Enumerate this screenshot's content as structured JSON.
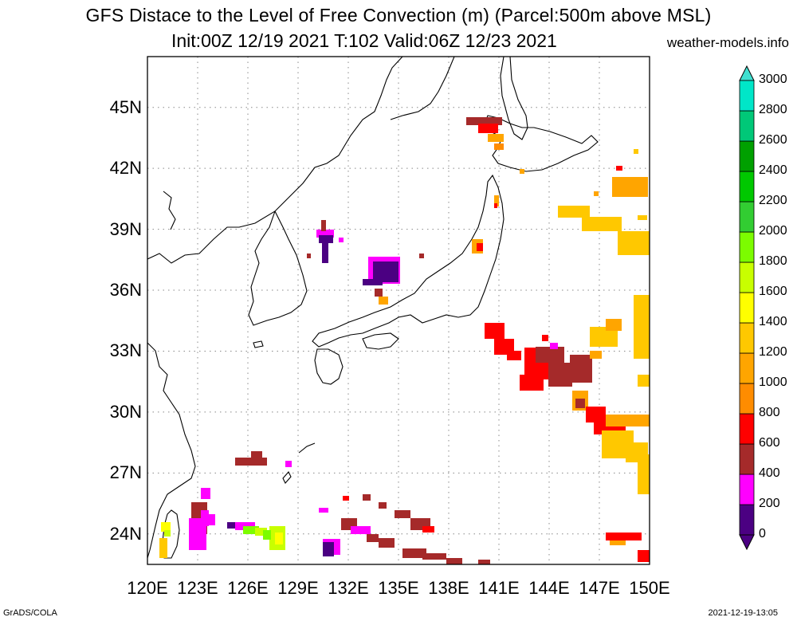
{
  "header": {
    "title_line1": "GFS Distace to the Level of Free Convection (m) (Parcel:500m above MSL)",
    "title_line2": "Init:00Z 12/19 2021 T:102 Valid:06Z 12/23 2021",
    "site": "weather-models.info"
  },
  "footer": {
    "left": "GrADS/COLA",
    "right": "2021-12-19-13:05"
  },
  "map": {
    "lon_range": [
      120,
      150
    ],
    "lat_range": [
      22.5,
      47.5
    ],
    "grid": true,
    "lat_ticks": [
      "24N",
      "27N",
      "30N",
      "33N",
      "36N",
      "39N",
      "42N",
      "45N"
    ],
    "lon_ticks": [
      "120E",
      "123E",
      "126E",
      "129E",
      "132E",
      "135E",
      "138E",
      "141E",
      "144E",
      "147E",
      "150E"
    ]
  },
  "colorbar": {
    "labels": [
      "0",
      "200",
      "400",
      "600",
      "800",
      "1000",
      "1200",
      "1400",
      "1600",
      "1800",
      "2000",
      "2200",
      "2400",
      "2600",
      "2800",
      "3000"
    ],
    "colors": [
      "#4b0082",
      "#ff00ff",
      "#a52a2a",
      "#ff0000",
      "#ff8c00",
      "#ffa500",
      "#ffc800",
      "#ffff00",
      "#c8ff00",
      "#7cfc00",
      "#32cd32",
      "#00c800",
      "#00a000",
      "#00c878",
      "#00e6c8",
      "#40e0d0"
    ]
  }
}
